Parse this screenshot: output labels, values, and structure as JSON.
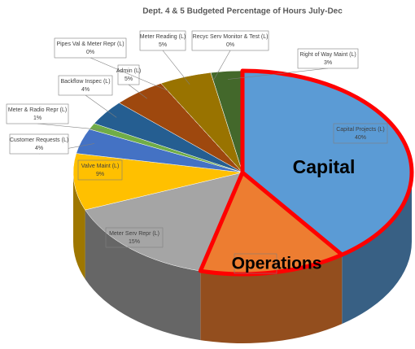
{
  "chart_data": {
    "type": "pie3d",
    "title": "Dept. 4 & 5 Budgeted Percentage of Hours July-Dec",
    "categories": [
      "Capital Projects (L)",
      null,
      "Meter Serv Repr (L)",
      "Valve Maint (L)",
      "Customer Requests (L)",
      "Meter & Radio Repr (L)",
      "Backflow Inspec (L)",
      "Admin (L)",
      "Pipes Val & Meter Repr (L)",
      "Meter Reading (L)",
      "Recyc Serv Monitor & Test (L)",
      "Right of Way Maint (L)"
    ],
    "values": [
      40,
      14,
      15,
      9,
      4,
      1,
      4,
      5,
      0,
      5,
      0,
      3
    ],
    "value_labels": [
      "40%",
      null,
      "15%",
      "9%",
      "4%",
      "1%",
      "4%",
      "5%",
      "0%",
      "5%",
      "0%",
      "3%"
    ],
    "colors": [
      "#5b9bd5",
      "#ed7d31",
      "#a5a5a5",
      "#ffc000",
      "#4472c4",
      "#70ad47",
      "#255e91",
      "#9e480e",
      "#636363",
      "#997300",
      "#264478",
      "#43682b"
    ],
    "annotations": [
      "Capital",
      "Operations"
    ]
  }
}
